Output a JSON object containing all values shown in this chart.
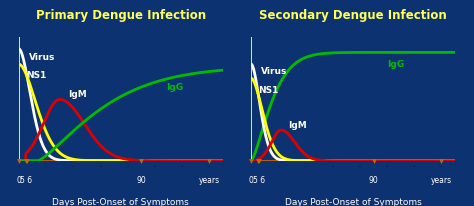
{
  "bg_color": "#0d3272",
  "title_left": "Primary Dengue Infection",
  "title_right": "Secondary Dengue Infection",
  "title_color": "#ffff55",
  "title_fontsize": 8.5,
  "axis_label": "Days Post-Onset of Symptoms",
  "axis_label_fontsize": 6.5,
  "line_colors": {
    "virus": "#ffffff",
    "ns1": "#ffff00",
    "igm": "#dd0000",
    "igg": "#00bb00"
  },
  "line_width": 2.0,
  "text_color": "white",
  "orange_color": "#cc6600",
  "xmax": 150,
  "ymax": 1.05,
  "label_fontsize": 6.5
}
